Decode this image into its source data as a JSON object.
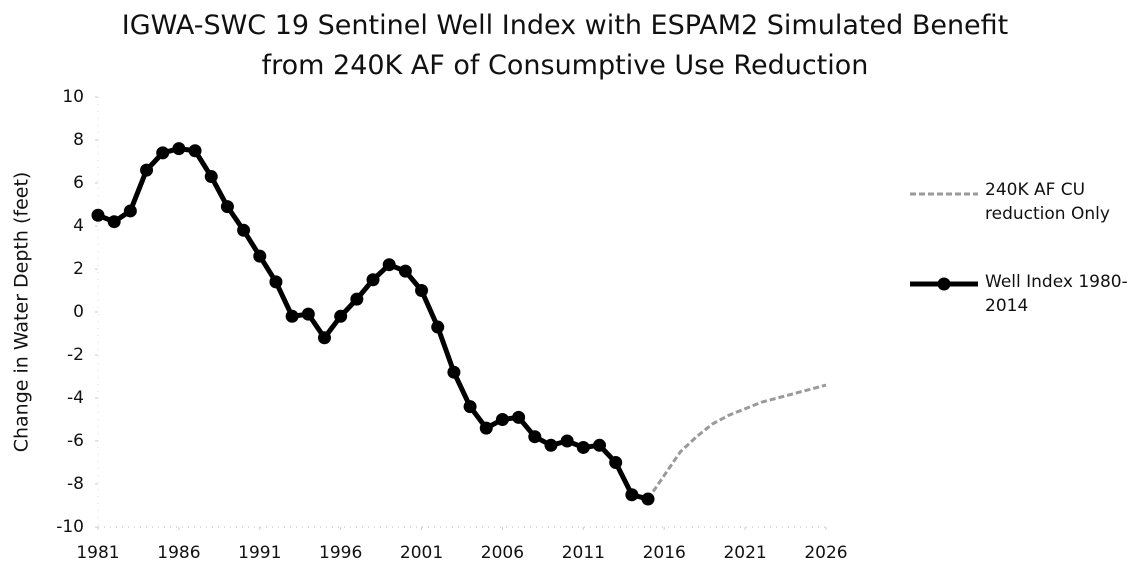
{
  "chart_data": {
    "type": "line",
    "title": "IGWA-SWC 19 Sentinel Well Index with ESPAM2 Simulated Benefit from 240K AF of Consumptive Use Reduction",
    "ylabel": "Change in Water Depth (feet)",
    "xlim": [
      1981,
      2026
    ],
    "xticks": [
      1981,
      1986,
      1991,
      1996,
      2001,
      2006,
      2011,
      2016,
      2021,
      2026
    ],
    "ylim": [
      -10,
      10
    ],
    "yticks": [
      -10,
      -8,
      -6,
      -4,
      -2,
      0,
      2,
      4,
      6,
      8,
      10
    ],
    "legend": "right",
    "series": [
      {
        "name": "240K AF CU reduction Only",
        "color": "#9a9a9a",
        "style": "dashed",
        "x": [
          2015,
          2016,
          2017,
          2018,
          2019,
          2020,
          2021,
          2022,
          2023,
          2024,
          2025,
          2026
        ],
        "values": [
          -8.7,
          -7.6,
          -6.5,
          -5.8,
          -5.2,
          -4.8,
          -4.5,
          -4.2,
          -4.0,
          -3.8,
          -3.6,
          -3.4
        ]
      },
      {
        "name": "Well Index 1980-2014",
        "color": "#000000",
        "style": "solid",
        "markers": true,
        "x": [
          1981,
          1982,
          1983,
          1984,
          1985,
          1986,
          1987,
          1988,
          1989,
          1990,
          1991,
          1992,
          1993,
          1994,
          1995,
          1996,
          1997,
          1998,
          1999,
          2000,
          2001,
          2002,
          2003,
          2004,
          2005,
          2006,
          2007,
          2008,
          2009,
          2010,
          2011,
          2012,
          2013,
          2014,
          2015
        ],
        "values": [
          4.5,
          4.2,
          4.7,
          6.6,
          7.4,
          7.6,
          7.5,
          6.3,
          4.9,
          3.8,
          2.6,
          1.4,
          -0.2,
          -0.1,
          -1.2,
          -0.2,
          0.6,
          1.5,
          2.2,
          1.9,
          1.0,
          -0.7,
          -2.8,
          -4.4,
          -5.4,
          -5.0,
          -4.9,
          -5.8,
          -6.2,
          -6.0,
          -6.3,
          -6.2,
          -7.0,
          -8.5,
          -8.7
        ]
      }
    ]
  }
}
